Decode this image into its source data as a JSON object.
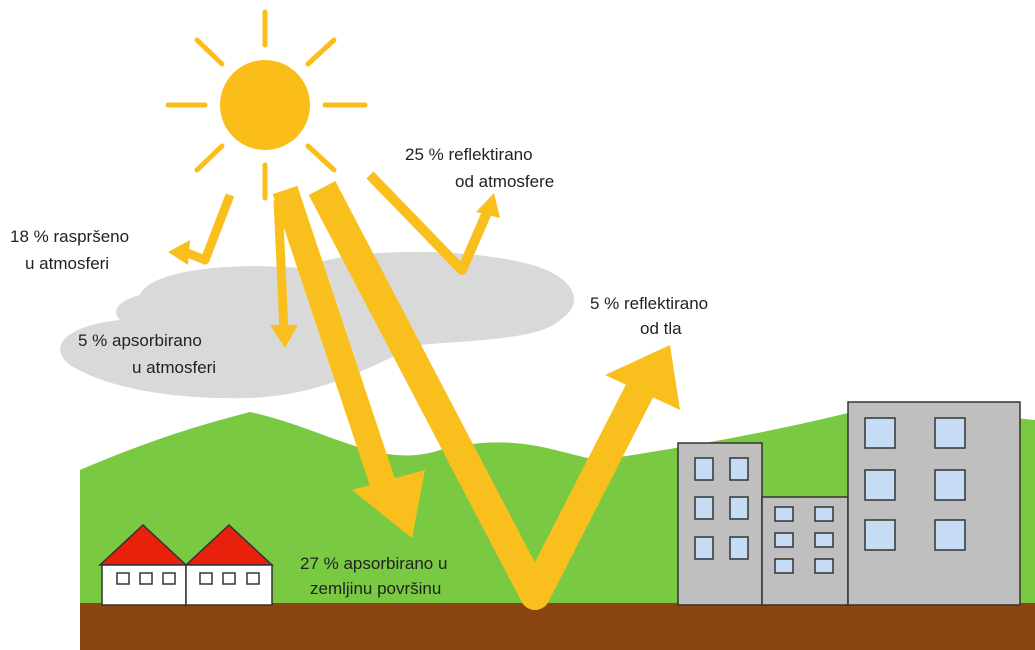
{
  "labels": [
    {
      "lines": [
        "25 % reflektirano",
        "od atmosfere"
      ]
    },
    {
      "lines": [
        "18 % raspršeno",
        "u atmosferi"
      ]
    },
    {
      "lines": [
        "5 % apsorbirano",
        "u atmosferi"
      ]
    },
    {
      "lines": [
        "5 % reflektirano",
        "od tla"
      ]
    },
    {
      "lines": [
        "27 % apsorbirano u",
        "zemljinu površinu"
      ]
    }
  ]
}
